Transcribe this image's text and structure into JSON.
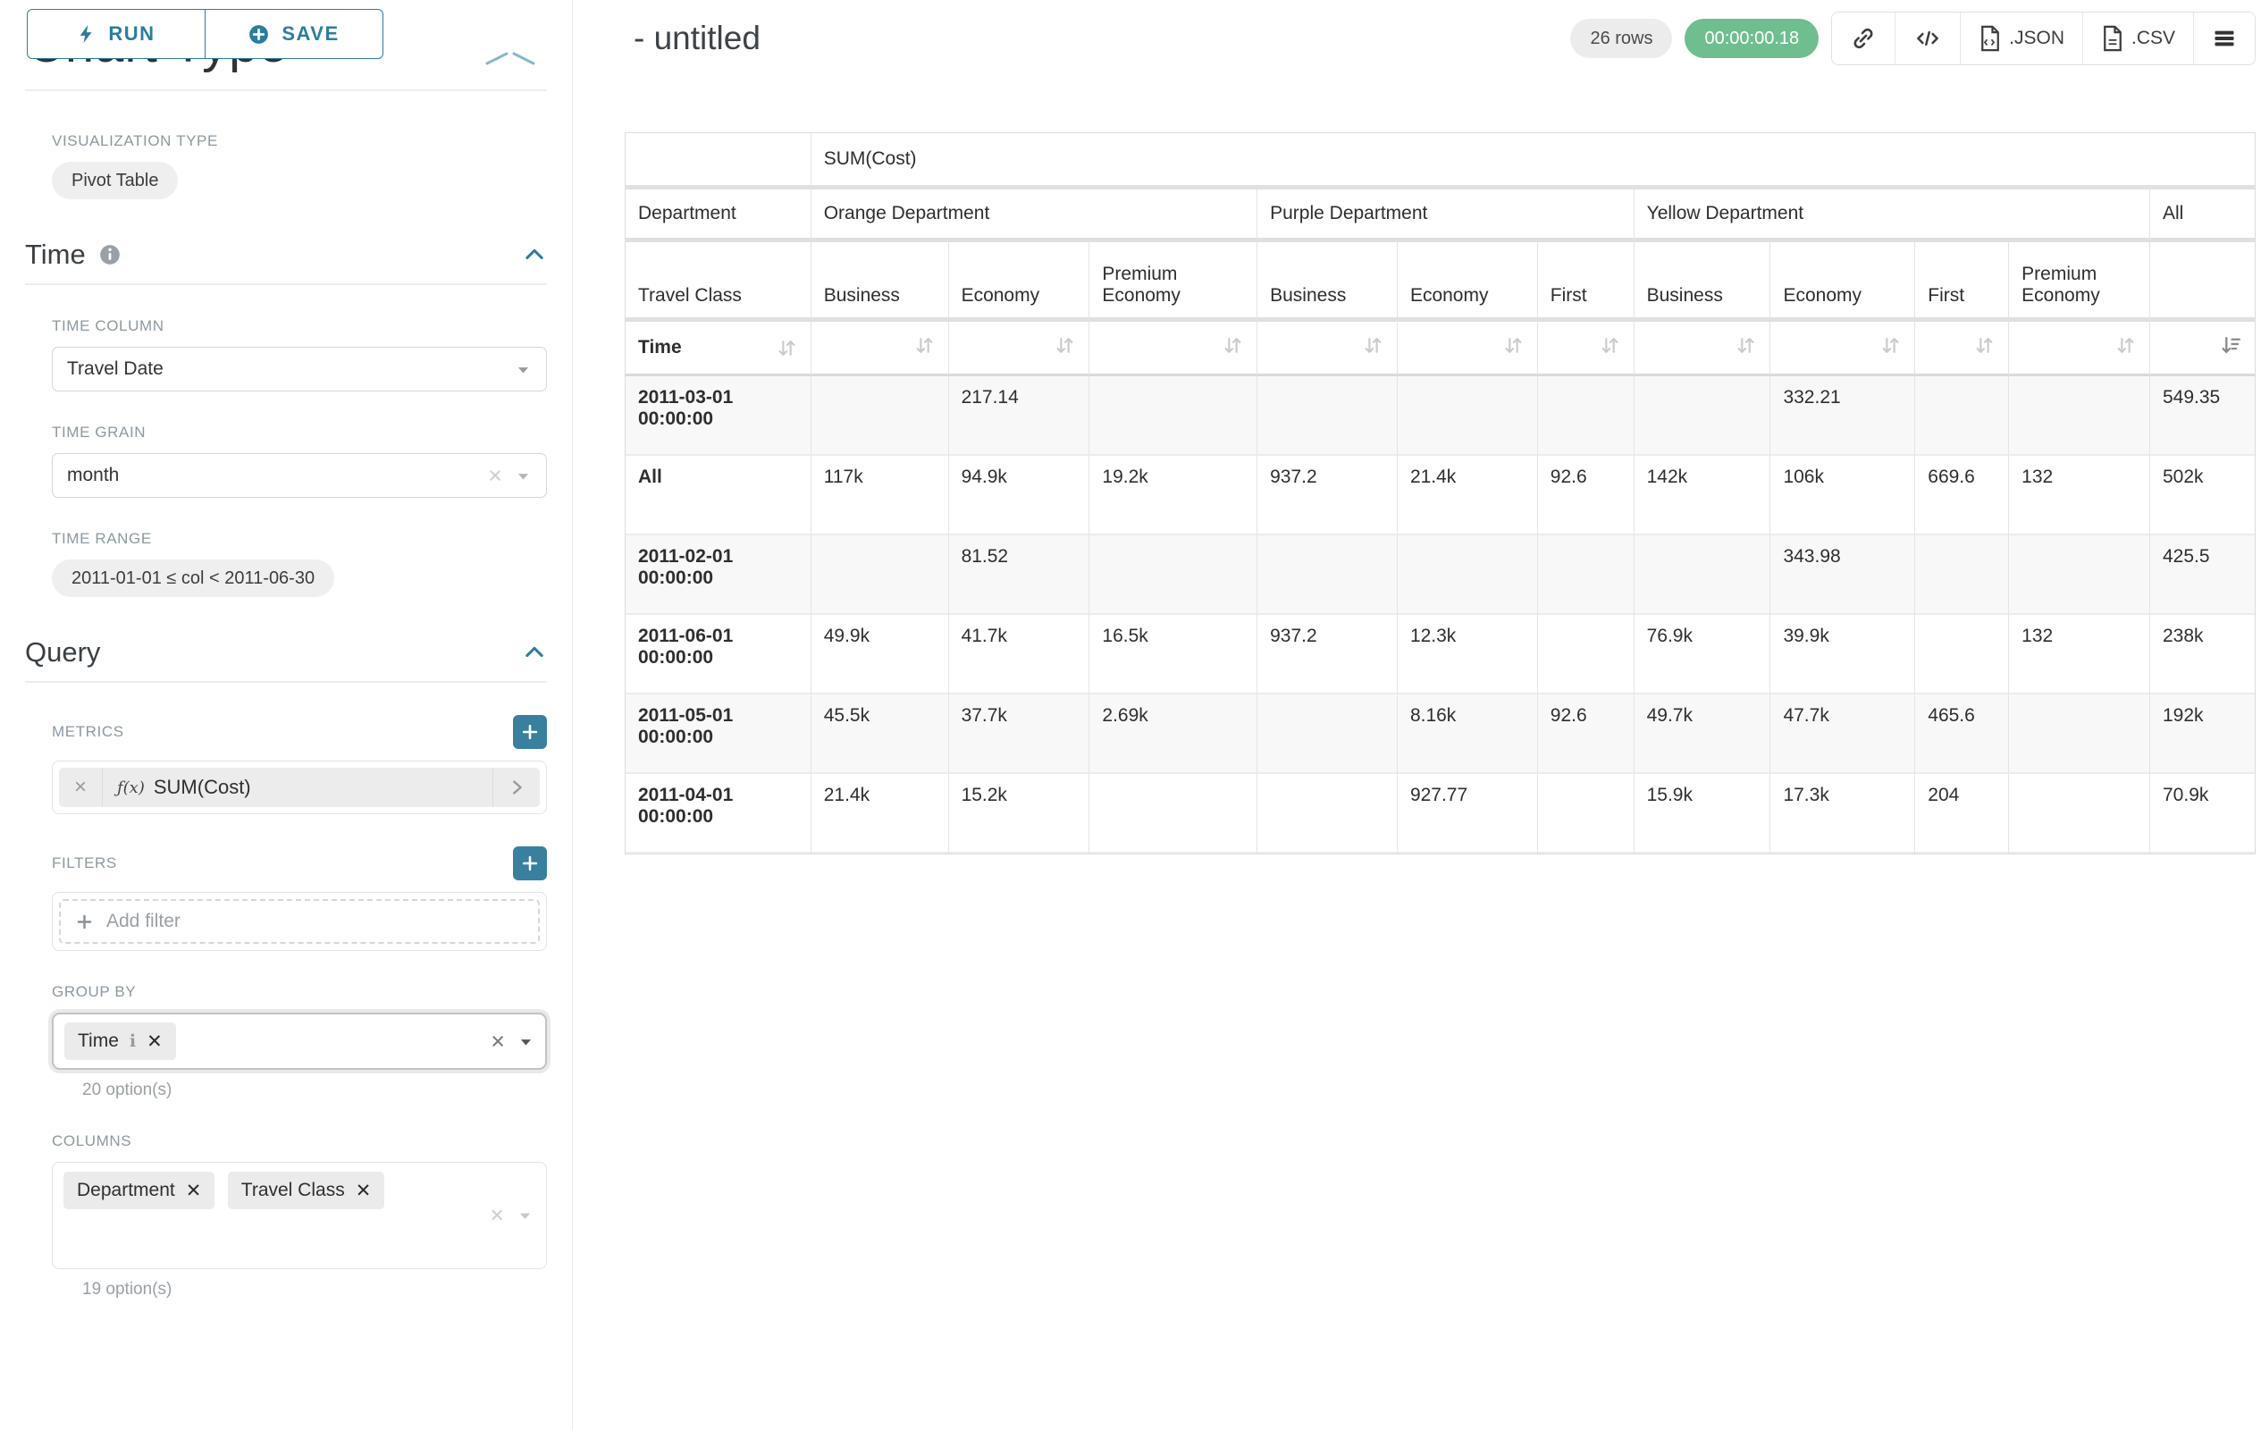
{
  "toolbar_buttons": {
    "run_label": "RUN",
    "save_label": "SAVE"
  },
  "sidebar": {
    "scrolled_heading": "Chart Type",
    "viz_type": {
      "label": "VISUALIZATION TYPE",
      "value": "Pivot Table"
    },
    "time_section": {
      "title": "Time",
      "time_column": {
        "label": "TIME COLUMN",
        "value": "Travel Date"
      },
      "time_grain": {
        "label": "TIME GRAIN",
        "value": "month"
      },
      "time_range": {
        "label": "TIME RANGE",
        "value": "2011-01-01 ≤ col < 2011-06-30"
      }
    },
    "query_section": {
      "title": "Query",
      "metrics": {
        "label": "METRICS",
        "fx": "ƒ(x)",
        "value": "SUM(Cost)"
      },
      "filters": {
        "label": "FILTERS",
        "placeholder": "Add filter"
      },
      "group_by": {
        "label": "GROUP BY",
        "chips": [
          "Time"
        ],
        "options_hint": "20 option(s)"
      },
      "columns": {
        "label": "COLUMNS",
        "chips": [
          "Department",
          "Travel Class"
        ],
        "options_hint": "19 option(s)"
      }
    }
  },
  "header": {
    "title": "- untitled",
    "row_count": "26 rows",
    "query_time": "00:00:00.18",
    "export_json_label": ".JSON",
    "export_csv_label": ".CSV"
  },
  "icons": {
    "run": "bolt-icon",
    "save": "plus-circle-icon",
    "sections": "chevron-up-icon",
    "share": "link-icon",
    "embed": "code-icon",
    "exports": "file-icon",
    "more": "menu-icon",
    "sort": "sort-icon",
    "sorted_desc": "sort-desc-icon"
  },
  "chart_data": {
    "type": "table",
    "metric": "SUM(Cost)",
    "row_header_labels": [
      "Department",
      "Travel Class",
      "Time"
    ],
    "column_groups": [
      {
        "label": "Orange Department",
        "children": [
          "Business",
          "Economy",
          "Premium Economy"
        ]
      },
      {
        "label": "Purple Department",
        "children": [
          "Business",
          "Economy",
          "First"
        ]
      },
      {
        "label": "Yellow Department",
        "children": [
          "Business",
          "Economy",
          "First",
          "Premium Economy"
        ]
      },
      {
        "label": "All",
        "children": [
          ""
        ]
      }
    ],
    "sorted_column": "All",
    "sort_direction": "desc",
    "rows": [
      {
        "label": "2011-03-01 00:00:00",
        "values": [
          "",
          "217.14",
          "",
          "",
          "",
          "",
          "",
          "332.21",
          "",
          "",
          "549.35"
        ]
      },
      {
        "label": "All",
        "values": [
          "117k",
          "94.9k",
          "19.2k",
          "937.2",
          "21.4k",
          "92.6",
          "142k",
          "106k",
          "669.6",
          "132",
          "502k"
        ]
      },
      {
        "label": "2011-02-01 00:00:00",
        "values": [
          "",
          "81.52",
          "",
          "",
          "",
          "",
          "",
          "343.98",
          "",
          "",
          "425.5"
        ]
      },
      {
        "label": "2011-06-01 00:00:00",
        "values": [
          "49.9k",
          "41.7k",
          "16.5k",
          "937.2",
          "12.3k",
          "",
          "76.9k",
          "39.9k",
          "",
          "132",
          "238k"
        ]
      },
      {
        "label": "2011-05-01 00:00:00",
        "values": [
          "45.5k",
          "37.7k",
          "2.69k",
          "",
          "8.16k",
          "92.6",
          "49.7k",
          "47.7k",
          "465.6",
          "",
          "192k"
        ]
      },
      {
        "label": "2011-04-01 00:00:00",
        "values": [
          "21.4k",
          "15.2k",
          "",
          "",
          "927.77",
          "",
          "15.9k",
          "17.3k",
          "204",
          "",
          "70.9k"
        ]
      }
    ]
  }
}
